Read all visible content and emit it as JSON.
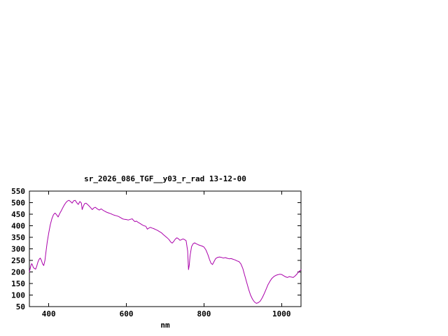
{
  "chart_data": {
    "type": "line",
    "title": "sr_2026_086_TGF__y03_r_rad 13-12-00",
    "xlabel": "nm",
    "ylabel": "",
    "xlim": [
      350,
      1050
    ],
    "ylim": [
      50,
      550
    ],
    "x_ticks": [
      400,
      600,
      800,
      1000
    ],
    "y_ticks": [
      50,
      100,
      150,
      200,
      250,
      300,
      350,
      400,
      450,
      500,
      550
    ],
    "grid": false,
    "legend": "none",
    "line_color": "#aa00aa",
    "border_color": "#000000",
    "background_color": "#ffffff",
    "series": [
      {
        "name": "sr_2026_086_TGF__y03_r_rad",
        "x": [
          350,
          352,
          354,
          356,
          358,
          360,
          363,
          366,
          369,
          372,
          375,
          378,
          381,
          384,
          387,
          390,
          393,
          396,
          400,
          404,
          408,
          412,
          416,
          420,
          424,
          428,
          432,
          436,
          440,
          444,
          448,
          452,
          456,
          460,
          464,
          468,
          472,
          476,
          480,
          484,
          486,
          488,
          492,
          496,
          500,
          504,
          508,
          512,
          516,
          520,
          525,
          530,
          535,
          540,
          545,
          550,
          555,
          560,
          565,
          570,
          575,
          580,
          585,
          590,
          595,
          600,
          605,
          610,
          615,
          618,
          622,
          626,
          630,
          635,
          640,
          645,
          650,
          654,
          658,
          662,
          666,
          670,
          675,
          680,
          685,
          690,
          695,
          700,
          705,
          710,
          714,
          718,
          722,
          726,
          730,
          734,
          738,
          742,
          746,
          750,
          754,
          758,
          760,
          762,
          764,
          768,
          772,
          776,
          780,
          785,
          790,
          795,
          800,
          805,
          810,
          814,
          818,
          822,
          826,
          830,
          835,
          840,
          845,
          850,
          855,
          860,
          865,
          870,
          875,
          880,
          885,
          890,
          895,
          900,
          905,
          910,
          915,
          920,
          925,
          930,
          935,
          940,
          945,
          950,
          955,
          960,
          965,
          970,
          975,
          980,
          985,
          990,
          995,
          1000,
          1005,
          1010,
          1015,
          1020,
          1025,
          1030,
          1035,
          1040,
          1045,
          1050
        ],
        "y": [
          200,
          215,
          228,
          236,
          230,
          220,
          215,
          212,
          225,
          243,
          255,
          260,
          250,
          235,
          228,
          250,
          290,
          330,
          370,
          405,
          430,
          448,
          455,
          448,
          438,
          452,
          465,
          478,
          490,
          500,
          507,
          510,
          505,
          498,
          508,
          510,
          500,
          492,
          505,
          498,
          470,
          480,
          495,
          498,
          492,
          485,
          478,
          470,
          477,
          480,
          473,
          468,
          473,
          467,
          462,
          458,
          455,
          452,
          448,
          445,
          443,
          440,
          435,
          430,
          428,
          427,
          425,
          428,
          430,
          424,
          418,
          420,
          415,
          410,
          405,
          400,
          398,
          385,
          390,
          393,
          390,
          388,
          384,
          380,
          375,
          370,
          362,
          355,
          348,
          340,
          330,
          325,
          332,
          342,
          348,
          344,
          337,
          340,
          343,
          340,
          335,
          290,
          210,
          230,
          270,
          310,
          322,
          326,
          322,
          318,
          315,
          312,
          308,
          295,
          275,
          255,
          238,
          232,
          245,
          258,
          263,
          265,
          263,
          260,
          262,
          259,
          257,
          258,
          255,
          252,
          248,
          245,
          235,
          215,
          185,
          155,
          125,
          100,
          82,
          70,
          64,
          67,
          74,
          88,
          105,
          125,
          145,
          160,
          172,
          180,
          185,
          188,
          190,
          189,
          184,
          179,
          176,
          180,
          178,
          176,
          183,
          192,
          202,
          210
        ]
      }
    ]
  }
}
